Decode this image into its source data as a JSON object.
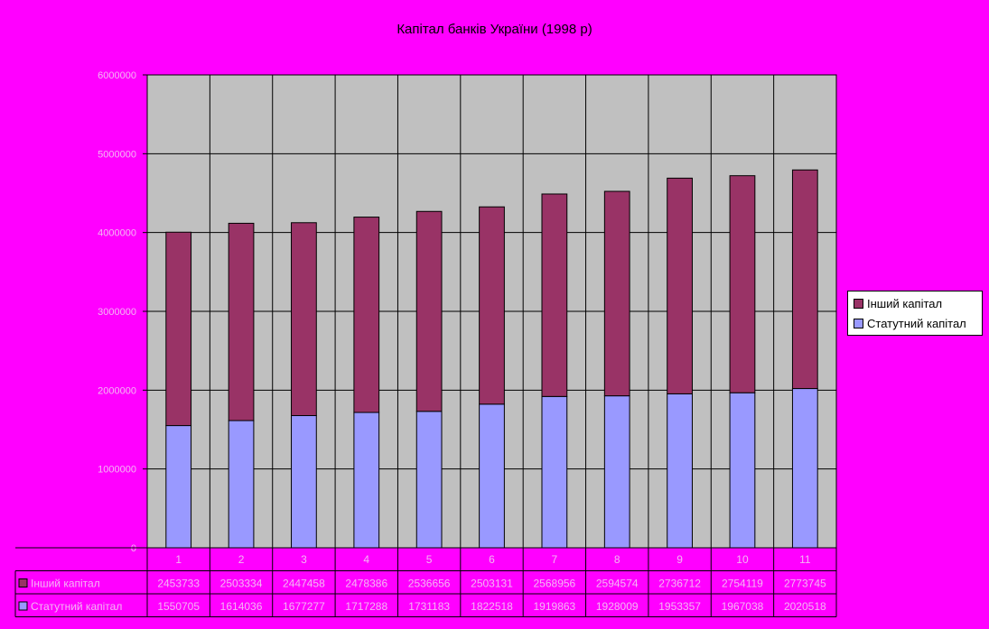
{
  "chart_data": {
    "type": "bar",
    "stacked": true,
    "title": "Капітал банків України (1998 р)",
    "categories": [
      "1",
      "2",
      "3",
      "4",
      "5",
      "6",
      "7",
      "8",
      "9",
      "10",
      "11"
    ],
    "series": [
      {
        "name": "Статутний капітал",
        "color": "#9999ff",
        "values": [
          1550705,
          1614036,
          1677277,
          1717288,
          1731183,
          1822518,
          1919863,
          1928009,
          1953357,
          1967038,
          2020518
        ]
      },
      {
        "name": "Інший капітал",
        "color": "#993366",
        "values": [
          2453733,
          2503334,
          2447458,
          2478386,
          2536656,
          2503131,
          2568956,
          2594574,
          2736712,
          2754119,
          2773745
        ]
      }
    ],
    "yticks": [
      "0",
      "1000000",
      "2000000",
      "3000000",
      "4000000",
      "5000000",
      "6000000"
    ],
    "ylim": [
      0,
      6000000
    ],
    "legend_position": "right",
    "data_table": true
  }
}
